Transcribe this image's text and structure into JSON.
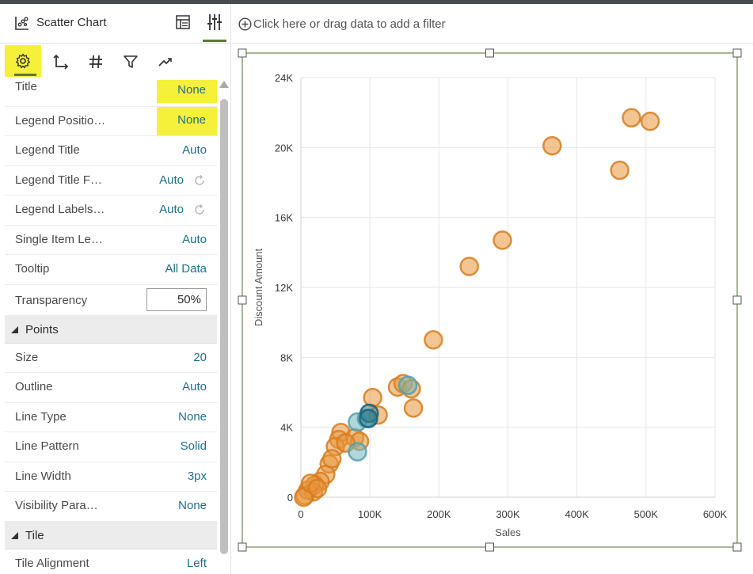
{
  "header": {
    "title": "Scatter Chart"
  },
  "filter_bar": {
    "placeholder": "Click here or drag data to add a filter"
  },
  "tabs": [
    "general-settings",
    "axis",
    "values",
    "filters",
    "analytics"
  ],
  "properties": {
    "general": [
      {
        "label": "Title",
        "value": "None"
      },
      {
        "label": "Legend Positio…",
        "value": "None"
      },
      {
        "label": "Legend Title",
        "value": "Auto"
      },
      {
        "label": "Legend Title F…",
        "value": "Auto"
      },
      {
        "label": "Legend Labels…",
        "value": "Auto"
      },
      {
        "label": "Single Item Le…",
        "value": "Auto"
      },
      {
        "label": "Tooltip",
        "value": "All Data"
      },
      {
        "label": "Transparency",
        "value": "50%"
      }
    ],
    "points_section": "Points",
    "points": [
      {
        "label": "Size",
        "value": "20"
      },
      {
        "label": "Outline",
        "value": "Auto"
      },
      {
        "label": "Line Type",
        "value": "None"
      },
      {
        "label": "Line Pattern",
        "value": "Solid"
      },
      {
        "label": "Line Width",
        "value": "3px"
      },
      {
        "label": "Visibility Para…",
        "value": "None"
      }
    ],
    "tile_section": "Tile",
    "tile": [
      {
        "label": "Tile Alignment",
        "value": "Left"
      }
    ]
  },
  "colors": {
    "orange": "#e8953a",
    "teal": "#6fb8bf",
    "dark_teal": "#2e7c8e",
    "highlight": "#f5f03a",
    "accent": "#5a7a3a"
  },
  "chart_data": {
    "type": "scatter",
    "xlabel": "Sales",
    "ylabel": "Discount Amount",
    "xlim": [
      0,
      600000
    ],
    "ylim": [
      0,
      24000
    ],
    "x_ticks": [
      "0",
      "100K",
      "200K",
      "300K",
      "400K",
      "500K",
      "600K"
    ],
    "y_ticks": [
      "0",
      "4K",
      "8K",
      "12K",
      "16K",
      "20K",
      "24K"
    ],
    "grid": true,
    "series": [
      {
        "color": "orange",
        "points": [
          [
            479000,
            21700
          ],
          [
            506000,
            21500
          ],
          [
            364000,
            20100
          ],
          [
            462000,
            18700
          ],
          [
            292000,
            14700
          ],
          [
            244000,
            13200
          ],
          [
            192000,
            9000
          ],
          [
            104000,
            5700
          ],
          [
            163000,
            5100
          ],
          [
            140000,
            6300
          ],
          [
            148000,
            6500
          ],
          [
            160000,
            6200
          ],
          [
            112000,
            4700
          ],
          [
            58000,
            3700
          ],
          [
            55000,
            3300
          ],
          [
            78000,
            3400
          ],
          [
            85000,
            3200
          ],
          [
            50000,
            2900
          ],
          [
            41000,
            1900
          ],
          [
            36000,
            1300
          ],
          [
            28000,
            900
          ],
          [
            20000,
            700
          ],
          [
            18000,
            300
          ],
          [
            10000,
            400
          ],
          [
            6000,
            100
          ],
          [
            4000,
            0
          ],
          [
            14000,
            800
          ],
          [
            24000,
            500
          ],
          [
            65000,
            3100
          ],
          [
            45000,
            2200
          ]
        ]
      },
      {
        "color": "teal",
        "points": [
          [
            82000,
            2600
          ],
          [
            82000,
            4300
          ],
          [
            95000,
            4500
          ],
          [
            155000,
            6400
          ]
        ]
      },
      {
        "color": "dark_teal",
        "points": [
          [
            99000,
            4800
          ],
          [
            98000,
            4500
          ]
        ]
      }
    ]
  }
}
